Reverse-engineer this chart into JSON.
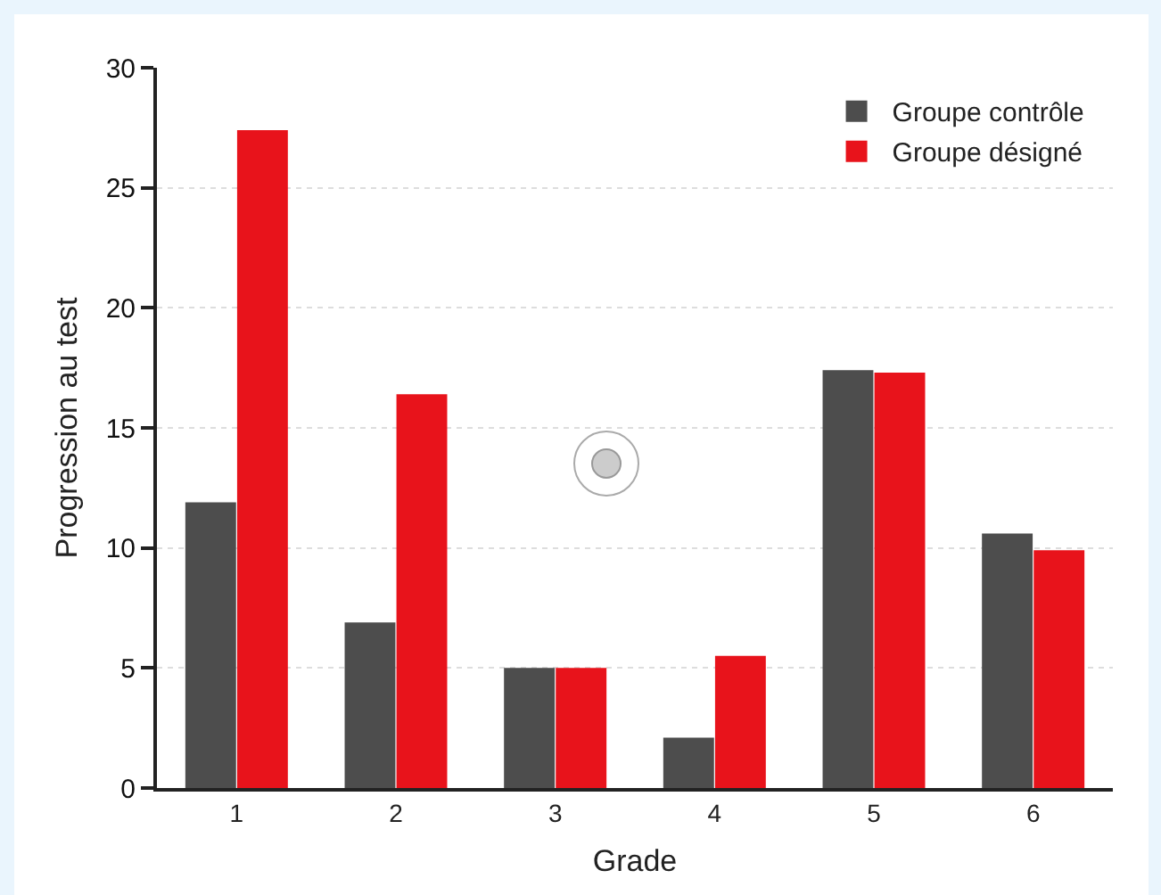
{
  "chart_data": {
    "type": "bar",
    "xlabel": "Grade",
    "ylabel": "Progression au test",
    "categories": [
      "1",
      "2",
      "3",
      "4",
      "5",
      "6"
    ],
    "series": [
      {
        "name": "Groupe contrôle",
        "color": "#4d4d4d",
        "values": [
          11.9,
          6.9,
          5.0,
          2.1,
          17.4,
          10.6
        ]
      },
      {
        "name": "Groupe désigné",
        "color": "#e8131b",
        "values": [
          27.4,
          16.4,
          5.0,
          5.5,
          17.3,
          9.9
        ]
      }
    ],
    "ylim": [
      0,
      30
    ],
    "yticks": [
      0,
      5,
      10,
      15,
      20,
      25,
      30
    ],
    "grid": "y",
    "legend": "top right"
  }
}
